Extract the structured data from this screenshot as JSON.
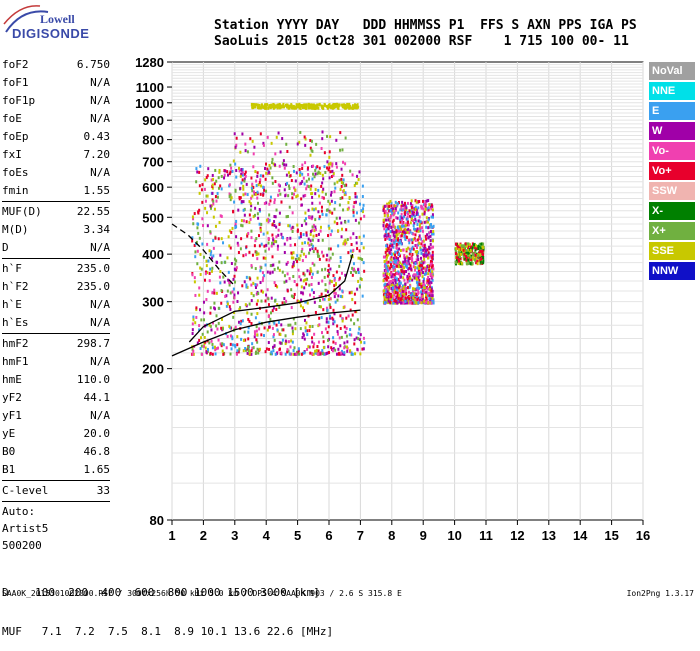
{
  "logo": {
    "line1": "Lowell",
    "line2": "DIGISONDE"
  },
  "header": {
    "line1": "Station YYYY DAY   DDD HHMMSS P1  FFS S AXN PPS IGA PS",
    "line2": "SaoLuis 2015 Oct28 301 002000 RSF    1 715 100 00- 11"
  },
  "params": [
    {
      "name": "foF2",
      "value": "6.750"
    },
    {
      "name": "foF1",
      "value": "N/A"
    },
    {
      "name": "foF1p",
      "value": "N/A"
    },
    {
      "name": "foE",
      "value": "N/A"
    },
    {
      "name": "foEp",
      "value": "0.43"
    },
    {
      "name": "fxI",
      "value": "7.20"
    },
    {
      "name": "foEs",
      "value": "N/A"
    },
    {
      "name": "fmin",
      "value": "1.55"
    },
    {
      "name": "MUF(D)",
      "value": "22.55",
      "sep": true
    },
    {
      "name": "M(D)",
      "value": "3.34"
    },
    {
      "name": "D",
      "value": "N/A"
    },
    {
      "name": "h`F",
      "value": "235.0",
      "sep": true
    },
    {
      "name": "h`F2",
      "value": "235.0"
    },
    {
      "name": "h`E",
      "value": "N/A"
    },
    {
      "name": "h`Es",
      "value": "N/A"
    },
    {
      "name": "hmF2",
      "value": "298.7",
      "sep": true
    },
    {
      "name": "hmF1",
      "value": "N/A"
    },
    {
      "name": "hmE",
      "value": "110.0"
    },
    {
      "name": "yF2",
      "value": "44.1"
    },
    {
      "name": "yF1",
      "value": "N/A"
    },
    {
      "name": "yE",
      "value": "20.0"
    },
    {
      "name": "B0",
      "value": "46.8"
    },
    {
      "name": "B1",
      "value": "1.65"
    },
    {
      "name": "C-level",
      "value": "33",
      "sep": true
    }
  ],
  "auto": {
    "line1": "Auto:",
    "line2": "Artist5",
    "line3": "500200"
  },
  "legend": [
    {
      "label": "NoVal",
      "color": "#a0a0a0"
    },
    {
      "label": "NNE",
      "color": "#00e0e8"
    },
    {
      "label": "E",
      "color": "#3aa0f0"
    },
    {
      "label": "W",
      "color": "#a000a8"
    },
    {
      "label": "Vo-",
      "color": "#f040b0"
    },
    {
      "label": "Vo+",
      "color": "#e8002c"
    },
    {
      "label": "SSW",
      "color": "#f0b4b0"
    },
    {
      "label": "X-",
      "color": "#008000"
    },
    {
      "label": "X+",
      "color": "#70b040"
    },
    {
      "label": "SSE",
      "color": "#c8c800"
    },
    {
      "label": "NNW",
      "color": "#1010c8"
    }
  ],
  "muf_table": {
    "d_row": "D    100  200  400  600  800 1000 1500 3000 [km]",
    "muf_row": "MUF   7.1  7.2  7.5  8.1  8.9 10.1 13.6 22.6 [MHz]"
  },
  "footer": {
    "left": "SAA0K_2015301002000.RSF / 300fx256h 50 kHz 5.0 km / DPS-4 SAA0K 903 / 2.6 S 315.8 E",
    "right": "Ion2Png 1.3.17"
  },
  "chart_data": {
    "type": "scatter",
    "xlim": [
      1,
      16
    ],
    "x_ticks": [
      1,
      2,
      3,
      4,
      5,
      6,
      7,
      8,
      9,
      10,
      11,
      12,
      13,
      14,
      15,
      16
    ],
    "y_scale": "log",
    "ylim": [
      80,
      1280
    ],
    "y_ticks": [
      80,
      200,
      300,
      400,
      500,
      600,
      700,
      800,
      900,
      1000,
      1100,
      1280
    ],
    "grid": true,
    "legend_position": "right",
    "clusters": [
      {
        "x": [
          1.6,
          7.1
        ],
        "y": [
          220,
          700
        ],
        "density": "high",
        "colors": [
          "#e8002c",
          "#f040b0",
          "#c8c800",
          "#a000a8",
          "#3aa0f0",
          "#70b040"
        ]
      },
      {
        "x": [
          2.8,
          6.5
        ],
        "y": [
          300,
          850
        ],
        "density": "low",
        "colors": [
          "#a000a8",
          "#e8002c",
          "#f040b0",
          "#c8c800",
          "#70b040"
        ]
      },
      {
        "x": [
          7.7,
          9.3
        ],
        "y": [
          300,
          560
        ],
        "density": "high",
        "colors": [
          "#e8002c",
          "#f040b0",
          "#c8c800",
          "#a000a8",
          "#3aa0f0"
        ]
      },
      {
        "x": [
          10.0,
          10.9
        ],
        "y": [
          380,
          430
        ],
        "density": "low",
        "colors": [
          "#e8002c",
          "#008000",
          "#70b040",
          "#c8c800"
        ]
      },
      {
        "x": [
          3.5,
          6.9
        ],
        "y": [
          975,
          1000
        ],
        "density": "low",
        "colors": [
          "#c8c800"
        ]
      }
    ],
    "traces": [
      {
        "name": "virtual-height-trace",
        "x": [
          1.55,
          2,
          3,
          4,
          5,
          6,
          6.5,
          6.75
        ],
        "y": [
          235,
          258,
          283,
          290,
          298,
          312,
          340,
          400
        ]
      },
      {
        "name": "base-profile",
        "x": [
          1,
          2,
          3,
          4,
          5,
          6,
          7
        ],
        "y": [
          216,
          235,
          253,
          265,
          273,
          280,
          285
        ]
      },
      {
        "name": "topside-dashed",
        "x": [
          1,
          1.5,
          2,
          2.5,
          3
        ],
        "y": [
          480,
          450,
          410,
          365,
          330
        ]
      }
    ]
  }
}
